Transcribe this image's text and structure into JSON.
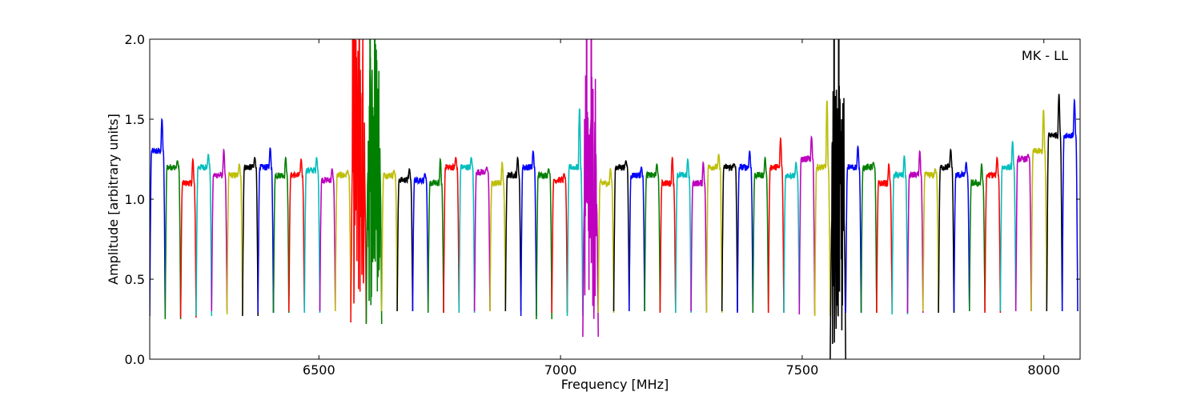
{
  "chart_data": {
    "type": "line",
    "title": "",
    "annotation": "MK - LL",
    "xlabel": "Frequency [MHz]",
    "ylabel": "Amplitude [arbitrary units]",
    "xlim": [
      6150,
      8075
    ],
    "ylim": [
      0.0,
      2.0
    ],
    "xticks": [
      6500,
      7000,
      7500,
      8000
    ],
    "xtick_labels": [
      "6500",
      "7000",
      "7500",
      "8000"
    ],
    "yticks": [
      0.0,
      0.5,
      1.0,
      1.5,
      2.0
    ],
    "ytick_labels": [
      "0.0",
      "0.5",
      "1.0",
      "1.5",
      "2.0"
    ],
    "grid": false,
    "channel_width_mhz": 32,
    "channel_spacing_mhz": 32,
    "first_channel_start_mhz": 6150,
    "background_trace_color": "#bfbfbf",
    "colors": [
      "#0000ff",
      "#008000",
      "#ff0000",
      "#00bfbf",
      "#bf00bf",
      "#bfbf00",
      "#000000"
    ],
    "channels": [
      {
        "color": "#0000ff",
        "peak": 1.5,
        "level": 1.3,
        "min": 0.27
      },
      {
        "color": "#008000",
        "peak": 1.24,
        "level": 1.2,
        "min": 0.25
      },
      {
        "color": "#ff0000",
        "peak": 1.25,
        "level": 1.1,
        "min": 0.26
      },
      {
        "color": "#00bfbf",
        "peak": 1.28,
        "level": 1.2,
        "min": 0.27
      },
      {
        "color": "#bf00bf",
        "peak": 1.31,
        "level": 1.15,
        "min": 0.3
      },
      {
        "color": "#bfbf00",
        "peak": 1.22,
        "level": 1.15,
        "min": 0.28
      },
      {
        "color": "#000000",
        "peak": 1.26,
        "level": 1.2,
        "min": 0.27
      },
      {
        "color": "#0000ff",
        "peak": 1.32,
        "level": 1.2,
        "min": 0.29
      },
      {
        "color": "#008000",
        "peak": 1.26,
        "level": 1.15,
        "min": 0.29
      },
      {
        "color": "#ff0000",
        "peak": 1.25,
        "level": 1.15,
        "min": 0.3
      },
      {
        "color": "#00bfbf",
        "peak": 1.26,
        "level": 1.18,
        "min": 0.29
      },
      {
        "color": "#bf00bf",
        "peak": 1.19,
        "level": 1.12,
        "min": 0.3
      },
      {
        "color": "#bfbf00",
        "peak": 1.18,
        "level": 1.15,
        "min": 0.3
      },
      {
        "color": "#ff0000",
        "peak": 2.0,
        "level": 1.2,
        "min": 0.23
      },
      {
        "color": "#008000",
        "peak": 2.0,
        "level": 1.2,
        "min": 0.22
      },
      {
        "color": "#bfbf00",
        "peak": 1.18,
        "level": 1.15,
        "min": 0.3
      },
      {
        "color": "#000000",
        "peak": 1.19,
        "level": 1.12,
        "min": 0.3
      },
      {
        "color": "#0000ff",
        "peak": 1.16,
        "level": 1.12,
        "min": 0.3
      },
      {
        "color": "#008000",
        "peak": 1.25,
        "level": 1.1,
        "min": 0.29
      },
      {
        "color": "#ff0000",
        "peak": 1.26,
        "level": 1.2,
        "min": 0.29
      },
      {
        "color": "#00bfbf",
        "peak": 1.26,
        "level": 1.2,
        "min": 0.29
      },
      {
        "color": "#bf00bf",
        "peak": 1.2,
        "level": 1.17,
        "min": 0.3
      },
      {
        "color": "#bfbf00",
        "peak": 1.23,
        "level": 1.1,
        "min": 0.3
      },
      {
        "color": "#000000",
        "peak": 1.26,
        "level": 1.15,
        "min": 0.3
      },
      {
        "color": "#0000ff",
        "peak": 1.3,
        "level": 1.2,
        "min": 0.27
      },
      {
        "color": "#008000",
        "peak": 1.19,
        "level": 1.15,
        "min": 0.25
      },
      {
        "color": "#ff0000",
        "peak": 1.16,
        "level": 1.12,
        "min": 0.29
      },
      {
        "color": "#00bfbf",
        "peak": 1.57,
        "level": 1.2,
        "min": 0.27
      },
      {
        "color": "#bf00bf",
        "peak": 2.0,
        "level": 1.0,
        "min": 0.14
      },
      {
        "color": "#bfbf00",
        "peak": 1.19,
        "level": 1.1,
        "min": 0.29
      },
      {
        "color": "#000000",
        "peak": 1.24,
        "level": 1.2,
        "min": 0.3
      },
      {
        "color": "#0000ff",
        "peak": 1.2,
        "level": 1.15,
        "min": 0.3
      },
      {
        "color": "#008000",
        "peak": 1.22,
        "level": 1.15,
        "min": 0.3
      },
      {
        "color": "#ff0000",
        "peak": 1.26,
        "level": 1.1,
        "min": 0.29
      },
      {
        "color": "#00bfbf",
        "peak": 1.25,
        "level": 1.15,
        "min": 0.29
      },
      {
        "color": "#bf00bf",
        "peak": 1.23,
        "level": 1.1,
        "min": 0.3
      },
      {
        "color": "#bfbf00",
        "peak": 1.28,
        "level": 1.2,
        "min": 0.29
      },
      {
        "color": "#000000",
        "peak": 1.22,
        "level": 1.2,
        "min": 0.3
      },
      {
        "color": "#0000ff",
        "peak": 1.3,
        "level": 1.2,
        "min": 0.29
      },
      {
        "color": "#008000",
        "peak": 1.26,
        "level": 1.15,
        "min": 0.29
      },
      {
        "color": "#ff0000",
        "peak": 1.38,
        "level": 1.2,
        "min": 0.29
      },
      {
        "color": "#00bfbf",
        "peak": 1.23,
        "level": 1.15,
        "min": 0.29
      },
      {
        "color": "#bf00bf",
        "peak": 1.39,
        "level": 1.25,
        "min": 0.28
      },
      {
        "color": "#bfbf00",
        "peak": 1.62,
        "level": 1.2,
        "min": 0.27
      },
      {
        "color": "#000000",
        "peak": 2.0,
        "level": 0.9,
        "min": 0.0
      },
      {
        "color": "#0000ff",
        "peak": 1.33,
        "level": 1.2,
        "min": 0.29
      },
      {
        "color": "#008000",
        "peak": 1.23,
        "level": 1.2,
        "min": 0.29
      },
      {
        "color": "#ff0000",
        "peak": 1.22,
        "level": 1.1,
        "min": 0.29
      },
      {
        "color": "#00bfbf",
        "peak": 1.27,
        "level": 1.15,
        "min": 0.28
      },
      {
        "color": "#bf00bf",
        "peak": 1.3,
        "level": 1.15,
        "min": 0.29
      },
      {
        "color": "#bfbf00",
        "peak": 1.19,
        "level": 1.15,
        "min": 0.3
      },
      {
        "color": "#000000",
        "peak": 1.31,
        "level": 1.2,
        "min": 0.29
      },
      {
        "color": "#0000ff",
        "peak": 1.23,
        "level": 1.15,
        "min": 0.3
      },
      {
        "color": "#008000",
        "peak": 1.22,
        "level": 1.1,
        "min": 0.3
      },
      {
        "color": "#ff0000",
        "peak": 1.26,
        "level": 1.15,
        "min": 0.29
      },
      {
        "color": "#00bfbf",
        "peak": 1.36,
        "level": 1.2,
        "min": 0.3
      },
      {
        "color": "#bf00bf",
        "peak": 1.28,
        "level": 1.25,
        "min": 0.3
      },
      {
        "color": "#bfbf00",
        "peak": 1.56,
        "level": 1.3,
        "min": 0.3
      },
      {
        "color": "#000000",
        "peak": 1.66,
        "level": 1.4,
        "min": 0.3
      },
      {
        "color": "#0000ff",
        "peak": 1.62,
        "level": 1.4,
        "min": 0.3
      }
    ]
  }
}
